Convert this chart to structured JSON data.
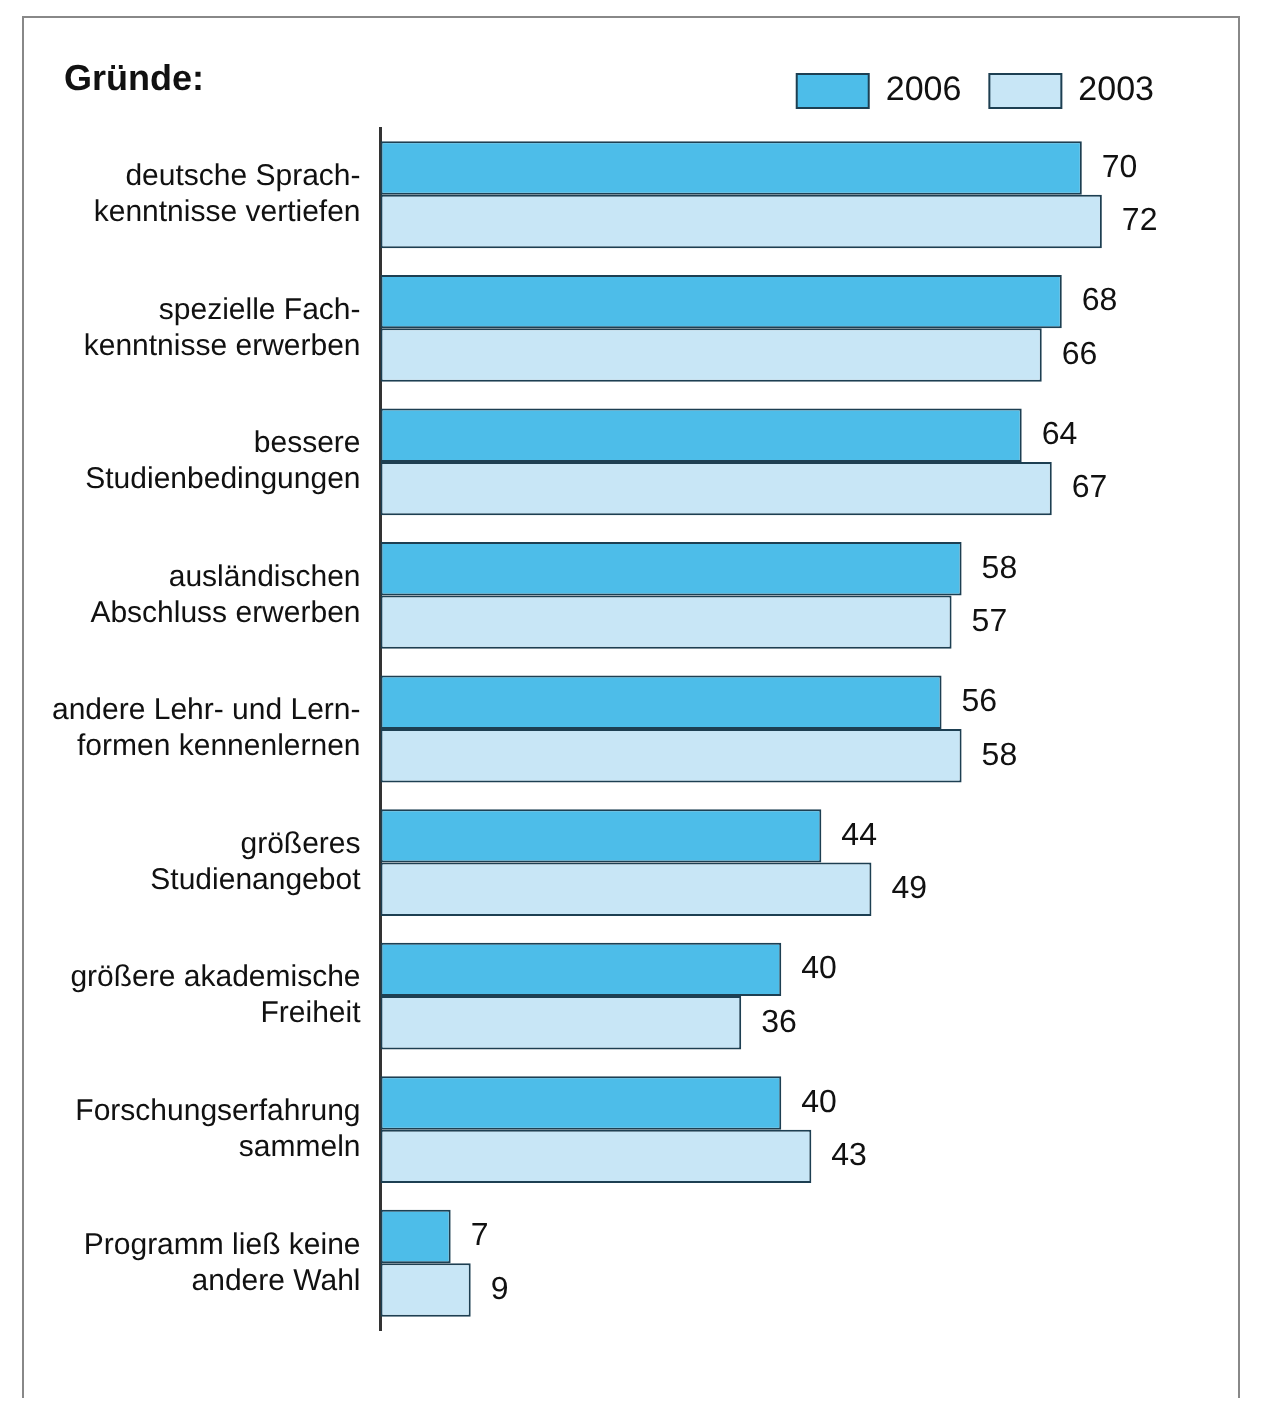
{
  "chart_data": {
    "type": "bar",
    "orientation": "horizontal",
    "title": "Gründe:",
    "data_labels": true,
    "legend": "top right",
    "categories": [
      "deutsche Sprach-\nkenntnisse vertiefen",
      "spezielle Fach-\nkenntnisse erwerben",
      "bessere\nStudienbedingungen",
      "ausländischen\nAbschluss erwerben",
      "andere Lehr- und Lern-\nformen kennenlernen",
      "größeres\nStudienangebot",
      "größere akademische\nFreiheit",
      "Forschungserfahrung\nsammeln",
      "Programm ließ keine\nandere Wahl"
    ],
    "series": [
      {
        "name": "2006",
        "color": "#4dbde9",
        "values": [
          70,
          68,
          64,
          58,
          56,
          44,
          40,
          40,
          7
        ]
      },
      {
        "name": "2003",
        "color": "#c8e6f6",
        "values": [
          72,
          66,
          67,
          57,
          58,
          49,
          36,
          43,
          9
        ]
      }
    ]
  }
}
